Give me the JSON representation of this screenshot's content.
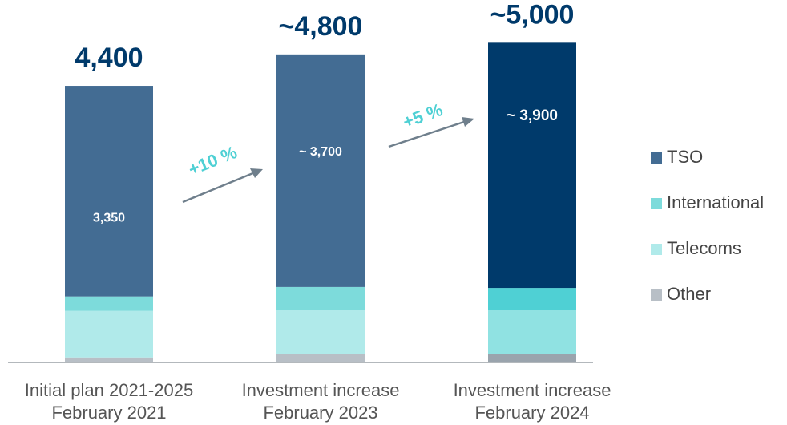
{
  "chart_data": {
    "type": "stacked-bar",
    "categories": [
      "Initial plan 2021-2025",
      "Investment increase",
      "Investment increase"
    ],
    "subcategories": [
      "February 2021",
      "February 2023",
      "February 2024"
    ],
    "totals": [
      "4,400",
      "~4,800",
      "~5,000"
    ],
    "series": [
      {
        "name": "Other",
        "color": "#b8bfc6",
        "colors": [
          "#b8bfc6",
          "#b8bfc6",
          "#9aa4ad"
        ],
        "values": [
          80,
          140,
          140
        ]
      },
      {
        "name": "Telecoms",
        "color": "#b0eaea",
        "colors": [
          "#b0eaea",
          "#b0eaea",
          "#90e2e2"
        ],
        "values": [
          740,
          700,
          700
        ]
      },
      {
        "name": "International",
        "color": "#7ddbdb",
        "colors": [
          "#7ddbdb",
          "#7ddbdb",
          "#4fd0d4"
        ],
        "values": [
          230,
          360,
          345
        ]
      },
      {
        "name": "TSO",
        "color": "#436c93",
        "colors": [
          "#436c93",
          "#436c93",
          "#003a6b"
        ],
        "values": [
          3350,
          3700,
          3900
        ],
        "value_labels": [
          "3,350",
          "~ 3,700",
          "~ 3,900"
        ]
      }
    ],
    "annotations": [
      "+10 %",
      "+5 %"
    ],
    "ylim": [
      0,
      5200
    ]
  }
}
